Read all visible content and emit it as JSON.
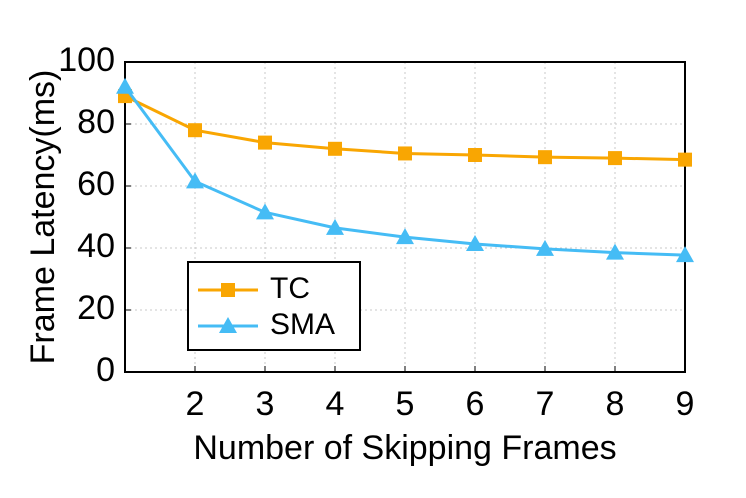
{
  "chart_data": {
    "type": "line",
    "x_label": "Number of Skipping Frames",
    "y_label": "Frame Latency(ms)",
    "x": [
      1,
      2,
      3,
      4,
      5,
      6,
      7,
      8,
      9
    ],
    "series": [
      {
        "name": "TC",
        "color": "#f9a602",
        "marker": "square",
        "values": [
          89,
          78,
          74,
          72,
          70.5,
          70,
          69.3,
          69,
          68.5
        ]
      },
      {
        "name": "SMA",
        "color": "#45bcf5",
        "marker": "triangle",
        "values": [
          92,
          61.5,
          51.5,
          46.5,
          43.5,
          41.3,
          39.7,
          38.5,
          37.7
        ]
      }
    ],
    "xlim": [
      1,
      9
    ],
    "xticks": [
      2,
      3,
      4,
      5,
      6,
      7,
      8,
      9
    ],
    "ylim": [
      0,
      100
    ],
    "yticks": [
      0,
      20,
      40,
      60,
      80,
      100
    ],
    "grid": true,
    "legend": "lower left"
  }
}
